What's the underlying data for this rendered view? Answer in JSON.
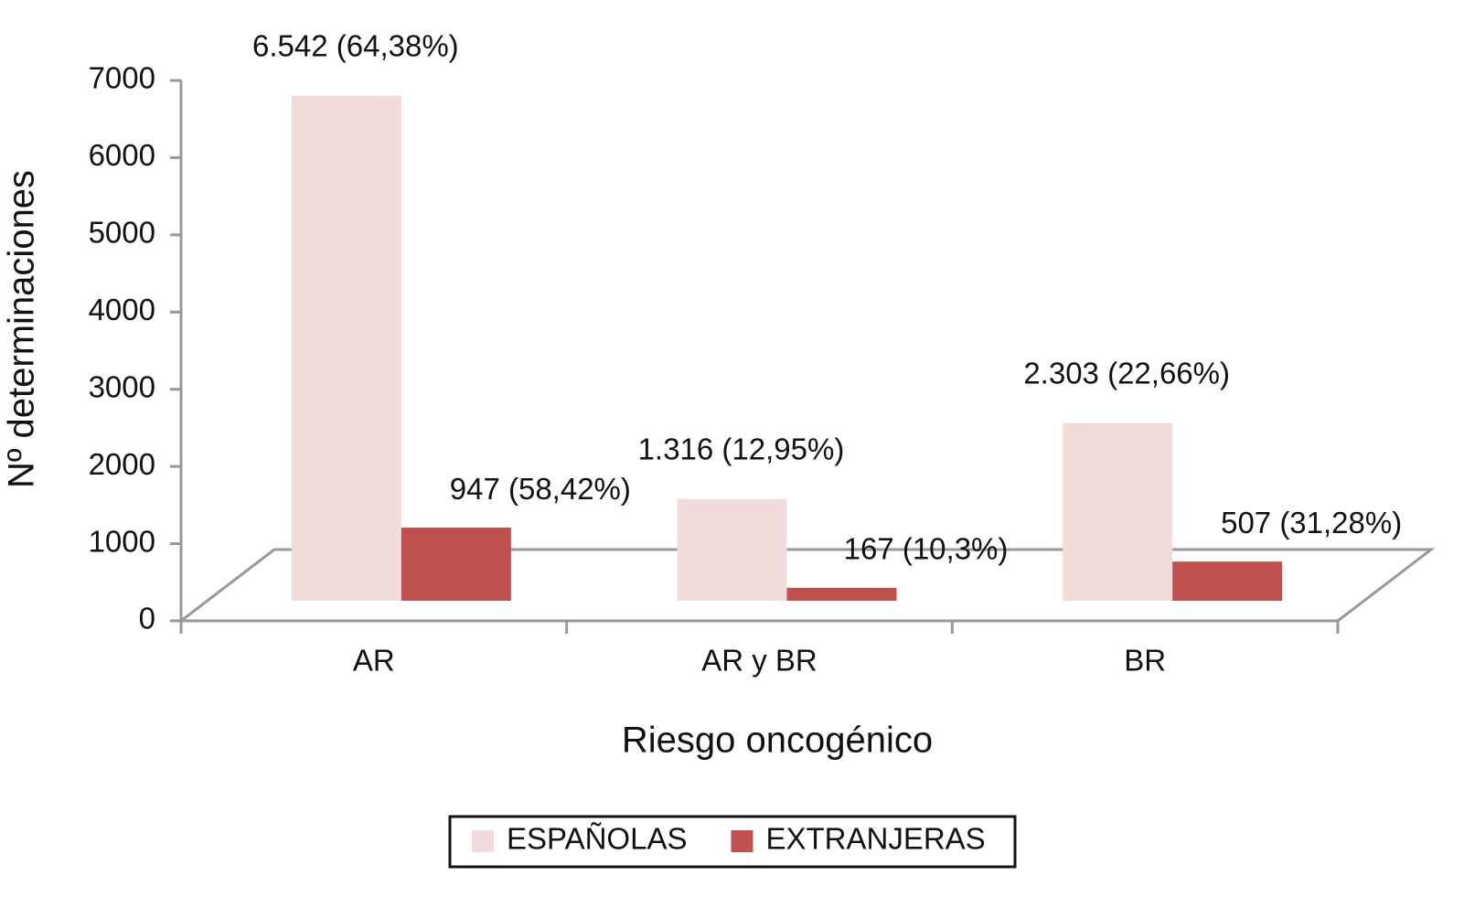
{
  "chart_data": {
    "type": "bar",
    "x_label": "Riesgo oncogénico",
    "y_label": "Nº determinaciones",
    "categories": [
      "AR",
      "AR y BR",
      "BR"
    ],
    "series": [
      {
        "name": "ESPAÑOLAS",
        "color": "#f2dcdb",
        "values": [
          6542,
          1316,
          2303
        ],
        "value_labels": [
          "6.542 (64,38%)",
          "1.316 (12,95%)",
          "2.303 (22,66%)"
        ]
      },
      {
        "name": "EXTRANJERAS",
        "color": "#c0504d",
        "values": [
          947,
          167,
          507
        ],
        "value_labels": [
          "947 (58,42%)",
          "167 (10,3%)",
          "507 (31,28%)"
        ]
      }
    ],
    "ylim": [
      0,
      7000
    ],
    "yticks": [
      0,
      1000,
      2000,
      3000,
      4000,
      5000,
      6000,
      7000
    ],
    "legend": "bottom"
  }
}
